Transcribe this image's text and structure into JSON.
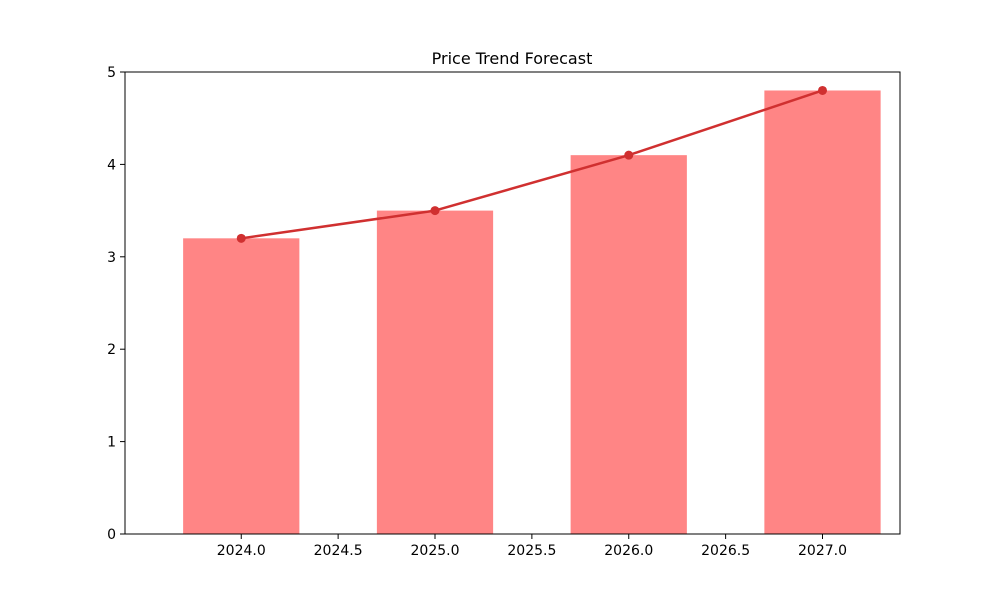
{
  "chart_data": {
    "type": "bar",
    "title": "Price Trend Forecast",
    "xlabel": "",
    "ylabel": "",
    "x": [
      2024,
      2025,
      2026,
      2027
    ],
    "series": [
      {
        "kind": "bar",
        "values": [
          3.2,
          3.5,
          4.1,
          4.8
        ],
        "color": "#ff8585"
      },
      {
        "kind": "line",
        "values": [
          3.2,
          3.5,
          4.1,
          4.8
        ],
        "color": "#d03030",
        "marker": "circle"
      }
    ],
    "bar_width": 0.6,
    "xlim": [
      2023.4,
      2027.4
    ],
    "ylim": [
      0,
      5
    ],
    "xticks": [
      2024.0,
      2024.5,
      2025.0,
      2025.5,
      2026.0,
      2026.5,
      2027.0
    ],
    "xtick_labels": [
      "2024.0",
      "2024.5",
      "2025.0",
      "2025.5",
      "2026.0",
      "2026.5",
      "2027.0"
    ],
    "yticks": [
      0,
      1,
      2,
      3,
      4,
      5
    ],
    "ytick_labels": [
      "0",
      "1",
      "2",
      "3",
      "4",
      "5"
    ],
    "grid": false,
    "legend": "none"
  }
}
